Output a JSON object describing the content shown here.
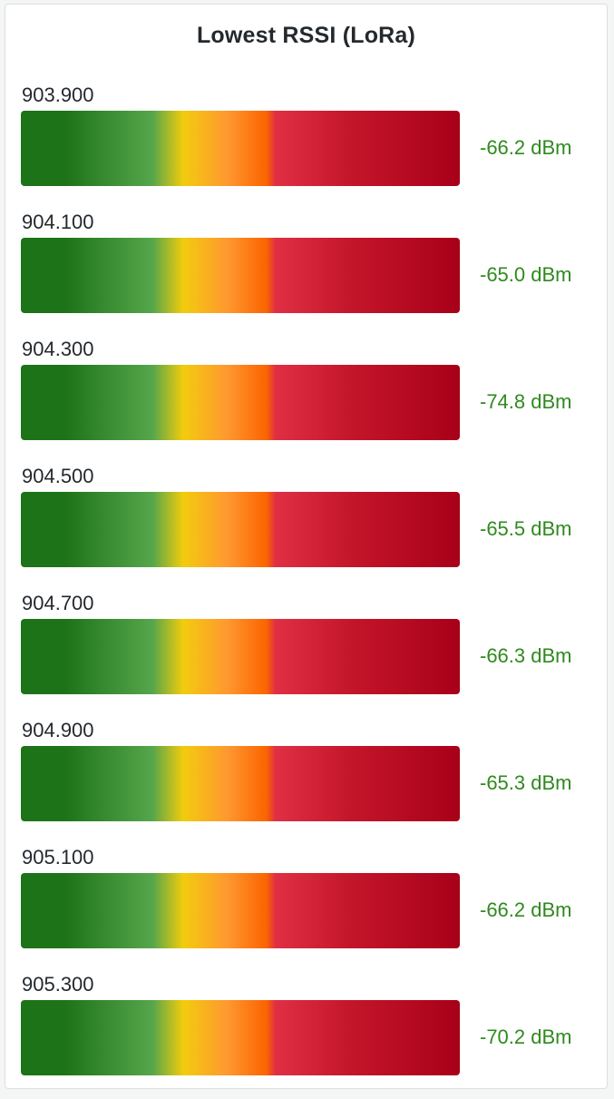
{
  "panel": {
    "title": "Lowest RSSI (LoRa)"
  },
  "colors": {
    "value_text": "#2f8a1e",
    "gradient_stops": [
      "#1d7318",
      "#1d7318",
      "#56a64b",
      "#f2cc0c",
      "#ff9830",
      "#fa6400",
      "#e02f44",
      "#c4162a",
      "#a80019"
    ]
  },
  "gauge": {
    "min_dbm": -100,
    "max_dbm": 0
  },
  "rows": [
    {
      "label": "903.900",
      "value_text": "-66.2 dBm",
      "value": -66.2
    },
    {
      "label": "904.100",
      "value_text": "-65.0 dBm",
      "value": -65.0
    },
    {
      "label": "904.300",
      "value_text": "-74.8 dBm",
      "value": -74.8
    },
    {
      "label": "904.500",
      "value_text": "-65.5 dBm",
      "value": -65.5
    },
    {
      "label": "904.700",
      "value_text": "-66.3 dBm",
      "value": -66.3
    },
    {
      "label": "904.900",
      "value_text": "-65.3 dBm",
      "value": -65.3
    },
    {
      "label": "905.100",
      "value_text": "-66.2 dBm",
      "value": -66.2
    },
    {
      "label": "905.300",
      "value_text": "-70.2 dBm",
      "value": -70.2
    }
  ]
}
